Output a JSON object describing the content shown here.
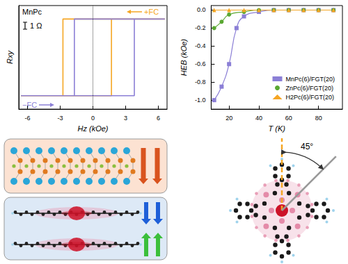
{
  "chart_data": [
    {
      "type": "line",
      "x_label": "Hz (kOe)",
      "y_label": "Rxy",
      "xlim": [
        -6.8,
        6.8
      ],
      "xticks": [
        -6,
        -3,
        0,
        3,
        6
      ],
      "ylim": [
        -1.35,
        1.35
      ],
      "tick_labels": "x",
      "grid": false,
      "series": [
        {
          "color": "#f5a623",
          "line_style": "solid",
          "x": [
            6.6,
            -2.75,
            -2.75,
            -6.6,
            1.7,
            1.7,
            6.6
          ],
          "values": [
            1,
            1,
            -1,
            -1,
            -1,
            1,
            1
          ]
        },
        {
          "color": "#8b7fd6",
          "line_style": "solid",
          "x": [
            6.6,
            -1.7,
            -1.7,
            -6.6,
            3.8,
            3.8,
            6.6
          ],
          "values": [
            1,
            1,
            -1,
            -1,
            -1,
            1,
            1
          ]
        }
      ],
      "annotations": [
        {
          "text": "MnPc",
          "color": "#000000"
        },
        {
          "text": "1 Ω",
          "color": "#000000"
        },
        {
          "text": "+FC",
          "color": "#f5a623"
        },
        {
          "text": "−FC",
          "color": "#8b7fd6"
        }
      ]
    },
    {
      "type": "line",
      "x_label": "T (K)",
      "y_label": "HEB (kOe)",
      "xlim": [
        8,
        96
      ],
      "xticks": [
        20,
        40,
        60,
        80
      ],
      "ylim": [
        -1.1,
        0.05
      ],
      "yticks": [
        {
          "value": -1.0,
          "label": "-1.0"
        },
        {
          "value": -0.8,
          "label": "-0.8"
        },
        {
          "value": -0.6,
          "label": "-0.6"
        },
        {
          "value": -0.4,
          "label": "-0.4"
        },
        {
          "value": -0.2,
          "label": "-0.2"
        },
        {
          "value": 0,
          "label": "0.0"
        }
      ],
      "legend": "lower right",
      "grid": false,
      "series": [
        {
          "name": "MnPc(6)/FGT(20)",
          "color": "#8b7fd6",
          "marker": "square",
          "line_style": "solid",
          "x": [
            10,
            15,
            20,
            25,
            30,
            40,
            50,
            60,
            70,
            80,
            90
          ],
          "values": [
            -1.0,
            -0.85,
            -0.6,
            -0.2,
            -0.07,
            -0.02,
            0,
            0,
            0,
            0,
            0
          ]
        },
        {
          "name": "ZnPc(6)/FGT(20)",
          "color": "#5aa832",
          "marker": "circle",
          "line_style": "solid",
          "x": [
            10,
            15,
            20,
            30,
            40,
            50,
            60,
            70,
            80,
            90
          ],
          "values": [
            -0.2,
            -0.13,
            -0.05,
            -0.02,
            0,
            0,
            0,
            0,
            0,
            0
          ]
        },
        {
          "name": "H2Pc(6)/FGT(20)",
          "color": "#f5a623",
          "marker": "triangle",
          "line_style": "solid",
          "x": [
            10,
            20,
            30,
            40,
            50,
            60,
            70,
            80,
            90
          ],
          "values": [
            0,
            0,
            0,
            0,
            0,
            0,
            0,
            0,
            0
          ]
        }
      ]
    }
  ],
  "diagram": {
    "angle_label": "45°"
  }
}
